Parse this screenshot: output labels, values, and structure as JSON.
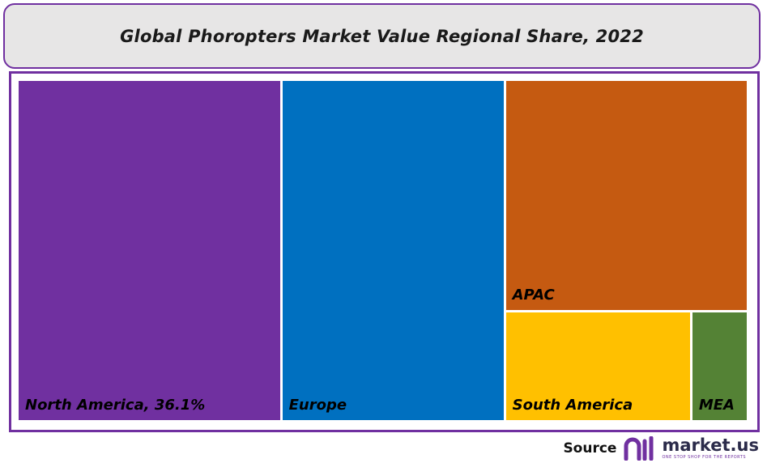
{
  "chart_data": {
    "type": "treemap",
    "title": "Global Phoropters Market Value Regional Share, 2022",
    "tiles": [
      {
        "name": "North America",
        "label": "North America, 36.1%",
        "value": 36.1,
        "color": "#7030a0"
      },
      {
        "name": "Europe",
        "label": "Europe",
        "value": 30.6,
        "color": "#0070c0"
      },
      {
        "name": "APAC",
        "label": "APAC",
        "value": 22.6,
        "color": "#c55a11"
      },
      {
        "name": "South America",
        "label": "South America",
        "value": 8.2,
        "color": "#ffc000"
      },
      {
        "name": "MEA",
        "label": "MEA",
        "value": 2.5,
        "color": "#548235"
      }
    ]
  },
  "footer": {
    "source_label": "Source",
    "brand_name": "market.us",
    "brand_tagline": "ONE STOP SHOP FOR THE REPORTS"
  },
  "colors": {
    "accent": "#7030a0",
    "title_bg": "#e7e6e6"
  }
}
